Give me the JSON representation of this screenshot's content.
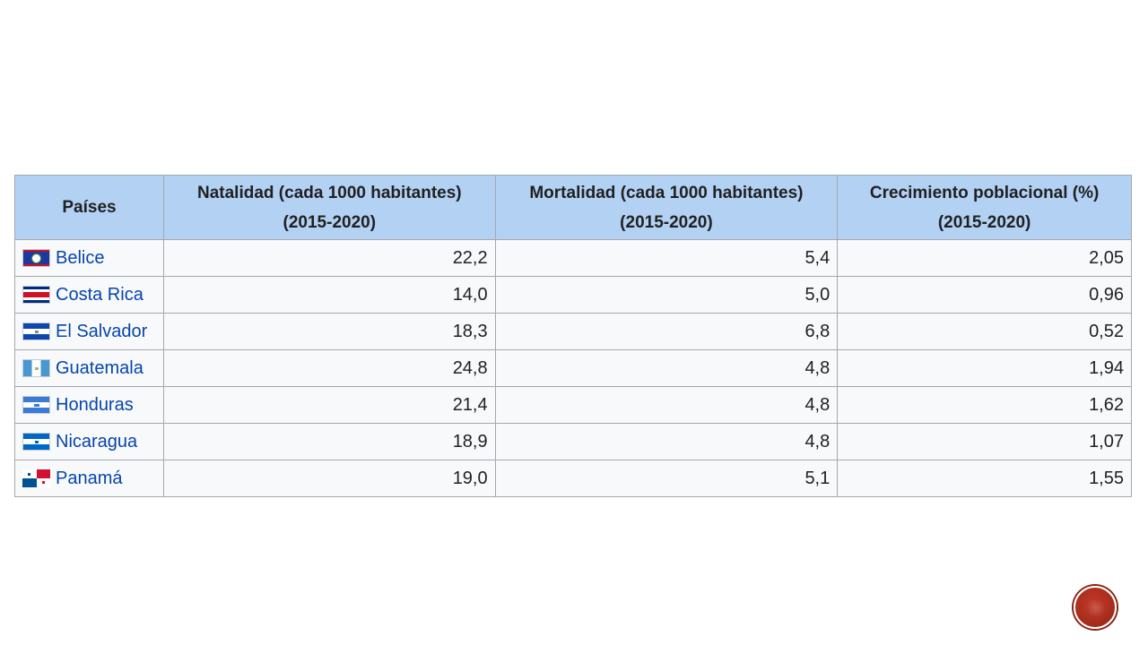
{
  "table": {
    "headers": [
      {
        "line1": "Países",
        "line2": ""
      },
      {
        "line1": "Natalidad (cada 1000 habitantes)",
        "line2": "(2015-2020)"
      },
      {
        "line1": "Mortalidad (cada 1000 habitantes)",
        "line2": "(2015-2020)"
      },
      {
        "line1": "Crecimiento poblacional (%)",
        "line2": "(2015-2020)"
      }
    ],
    "rows": [
      {
        "country": "Belice",
        "flag": "belize-flag-icon",
        "natalidad": "22,2",
        "mortalidad": "5,4",
        "crecimiento": "2,05"
      },
      {
        "country": "Costa Rica",
        "flag": "costa-rica-flag-icon",
        "natalidad": "14,0",
        "mortalidad": "5,0",
        "crecimiento": "0,96"
      },
      {
        "country": "El Salvador",
        "flag": "el-salvador-flag-icon",
        "natalidad": "18,3",
        "mortalidad": "6,8",
        "crecimiento": "0,52"
      },
      {
        "country": "Guatemala",
        "flag": "guatemala-flag-icon",
        "natalidad": "24,8",
        "mortalidad": "4,8",
        "crecimiento": "1,94"
      },
      {
        "country": "Honduras",
        "flag": "honduras-flag-icon",
        "natalidad": "21,4",
        "mortalidad": "4,8",
        "crecimiento": "1,62"
      },
      {
        "country": "Nicaragua",
        "flag": "nicaragua-flag-icon",
        "natalidad": "18,9",
        "mortalidad": "4,8",
        "crecimiento": "1,07"
      },
      {
        "country": "Panamá",
        "flag": "panama-flag-icon",
        "natalidad": "19,0",
        "mortalidad": "5,1",
        "crecimiento": "1,55"
      }
    ]
  },
  "colors": {
    "header_bg": "#b3d1f3",
    "cell_bg": "#f8f9fa",
    "border": "#a2a9b1",
    "link": "#0645ad",
    "nav_circle": "#a92d1c"
  },
  "nav": {
    "icon": "slide-nav-circle-icon"
  }
}
